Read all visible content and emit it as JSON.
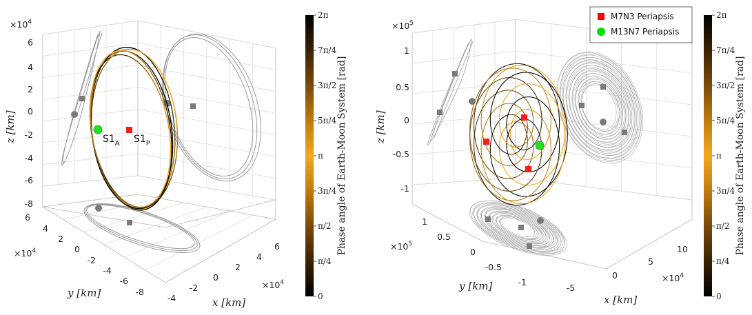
{
  "chart_data": [
    {
      "type": "line",
      "projection": "3d",
      "title": "",
      "xlabel": "x [km]",
      "ylabel": "y [km]",
      "zlabel": "z [km]",
      "x_ticks": [
        "-4",
        "-2",
        "0",
        "2",
        "4",
        "6"
      ],
      "x_exponent": "×10",
      "x_exponent_power": "4",
      "y_ticks": [
        "6",
        "4",
        "2",
        "0",
        "-2",
        "-4",
        "-6",
        "-8"
      ],
      "y_exponent": "×10",
      "y_exponent_power": "4",
      "z_ticks": [
        "6",
        "4",
        "2",
        "0",
        "-2",
        "-4",
        "-6",
        "-8"
      ],
      "z_exponent": "×10",
      "z_exponent_power": "4",
      "xlim": [
        -4,
        6
      ],
      "ylim": [
        -8,
        6
      ],
      "zlim": [
        -8,
        6
      ],
      "grid": true,
      "annotations": [
        {
          "text": "S1",
          "subscript": "A",
          "marker": "green-circle"
        },
        {
          "text": "S1",
          "subscript": "P",
          "marker": "red-square"
        }
      ],
      "series": [
        {
          "kind": "trajectory colored by phase angle (0 to 2π)"
        },
        {
          "kind": "gray projections on walls with circle/square periapsis markers"
        }
      ],
      "colorbar": {
        "label": "Phase angle of Earth-Moon System [rad]",
        "ticks": [
          "0",
          "π/4",
          "π/2",
          "3π/4",
          "π",
          "5π/4",
          "3π/2",
          "7π/4",
          "2π"
        ],
        "colors": [
          "#000000",
          "#3a2204",
          "#7a4a08",
          "#c07a0e",
          "#f4a81c",
          "#c07a0e",
          "#7a4a08",
          "#3a2204",
          "#000000"
        ]
      }
    },
    {
      "type": "line",
      "projection": "3d",
      "title": "",
      "xlabel": "x [km]",
      "ylabel": "y [km]",
      "zlabel": "z [km]",
      "x_ticks": [
        "-5",
        "0",
        "5",
        "10"
      ],
      "x_exponent": "×10",
      "x_exponent_power": "4",
      "y_ticks": [
        "1",
        "0.5",
        "0",
        "-0.5",
        "-1"
      ],
      "y_exponent": "×10",
      "y_exponent_power": "5",
      "z_ticks": [
        "1",
        "0.5",
        "0",
        "-0.5",
        "-1"
      ],
      "z_exponent": "×10",
      "z_exponent_power": "5",
      "xlim": [
        -8,
        12
      ],
      "ylim": [
        -1.3,
        1.3
      ],
      "zlim": [
        -1.2,
        1.2
      ],
      "grid": true,
      "legend": {
        "position": "top-right",
        "entries": [
          {
            "label": "M7N3 Periapsis",
            "marker": "square",
            "color": "#ff0000"
          },
          {
            "label": "M13N7 Periapsis",
            "marker": "circle",
            "color": "#00e000"
          }
        ]
      },
      "series": [
        {
          "kind": "trajectory colored by phase angle (0 to 2π)"
        },
        {
          "kind": "gray projections on walls with circle/square periapsis markers"
        }
      ],
      "colorbar": {
        "label": "Phase angle of Earth-Moon System [rad]",
        "ticks": [
          "0",
          "π/4",
          "π/2",
          "3π/4",
          "π",
          "5π/4",
          "3π/2",
          "7π/4",
          "2π"
        ],
        "colors": [
          "#000000",
          "#3a2204",
          "#7a4a08",
          "#c07a0e",
          "#f4a81c",
          "#c07a0e",
          "#7a4a08",
          "#3a2204",
          "#000000"
        ]
      }
    }
  ]
}
